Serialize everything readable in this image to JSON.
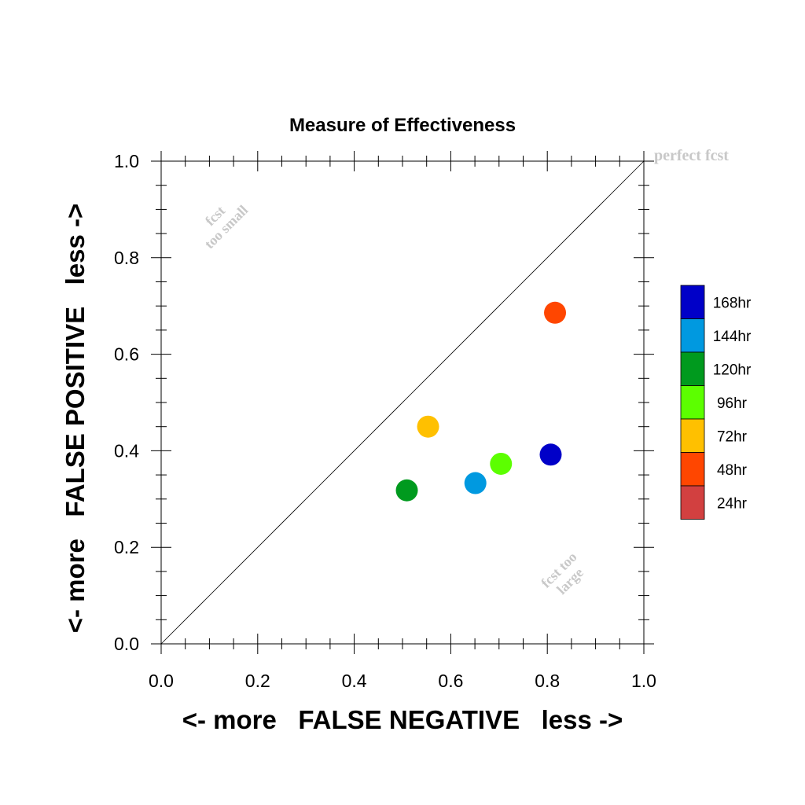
{
  "chart_data": {
    "type": "scatter",
    "title": "Measure of Effectiveness",
    "xlabel": "<- more   FALSE NEGATIVE   less ->",
    "ylabel": "<- more   FALSE POSITIVE   less ->",
    "xlim": [
      0.0,
      1.0
    ],
    "ylim": [
      0.0,
      1.0
    ],
    "x_ticks": [
      "0.0",
      "0.2",
      "0.4",
      "0.6",
      "0.8",
      "1.0"
    ],
    "y_ticks": [
      "0.0",
      "0.2",
      "0.4",
      "0.6",
      "0.8",
      "1.0"
    ],
    "grid": false,
    "legend_position": "right",
    "reference_line": {
      "from": [
        0,
        0
      ],
      "to": [
        1,
        1
      ]
    },
    "annotations": {
      "perfect": "perfect fcst",
      "small_line1": "fcst",
      "small_line2": "too small",
      "large_line1": "fcst too",
      "large_line2": "large"
    },
    "series": [
      {
        "name": "168hr",
        "color": "#0000c8",
        "x": 0.807,
        "y": 0.392
      },
      {
        "name": "144hr",
        "color": "#0099e0",
        "x": 0.651,
        "y": 0.333
      },
      {
        "name": "120hr",
        "color": "#009a1e",
        "x": 0.509,
        "y": 0.318
      },
      {
        "name": "96hr",
        "color": "#5cff00",
        "x": 0.704,
        "y": 0.373
      },
      {
        "name": "72hr",
        "color": "#ffc000",
        "x": 0.553,
        "y": 0.45
      },
      {
        "name": "48hr",
        "color": "#ff4600",
        "x": 0.816,
        "y": 0.686
      },
      {
        "name": "24hr",
        "color": "#d24040",
        "x": null,
        "y": null
      }
    ]
  }
}
